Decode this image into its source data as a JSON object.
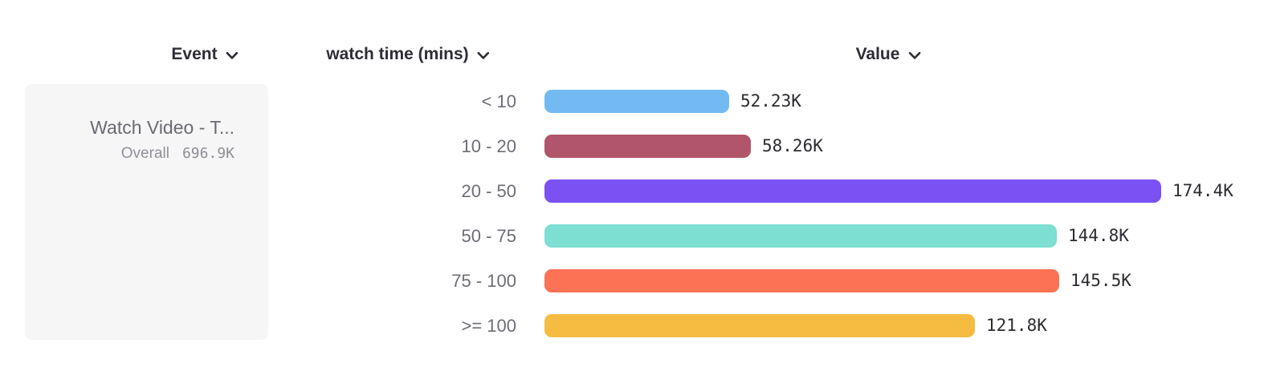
{
  "header": {
    "columns": [
      {
        "label": "Event"
      },
      {
        "label": "watch time (mins)"
      },
      {
        "label": "Value"
      }
    ]
  },
  "event_card": {
    "title": "Watch Video - T...",
    "overall_label": "Overall",
    "overall_value": "696.9K"
  },
  "chart_data": {
    "type": "bar",
    "orientation": "horizontal",
    "title": "",
    "xlabel": "Value",
    "ylabel": "watch time (mins)",
    "categories": [
      "< 10",
      "10 - 20",
      "20 - 50",
      "50 - 75",
      "75 - 100",
      ">= 100"
    ],
    "values": [
      52.23,
      58.26,
      174.4,
      144.8,
      145.5,
      121.8
    ],
    "unit": "K",
    "value_labels": [
      "52.23K",
      "58.26K",
      "174.4K",
      "144.8K",
      "145.5K",
      "121.8K"
    ],
    "bar_colors": [
      "#73baf2",
      "#b1566a",
      "#7b51f4",
      "#7cdfd2",
      "#fc7254",
      "#f5bc41"
    ],
    "xlim": [
      0,
      174.4
    ],
    "grid": false,
    "legend_position": "left",
    "series": [
      {
        "name": "Watch Video - T...",
        "overall": "696.9K"
      }
    ]
  },
  "colors": {
    "header_text": "#2d2d35",
    "label_text": "#6d6d76",
    "value_text": "#2b2b30",
    "card_bg": "#f6f6f7"
  }
}
